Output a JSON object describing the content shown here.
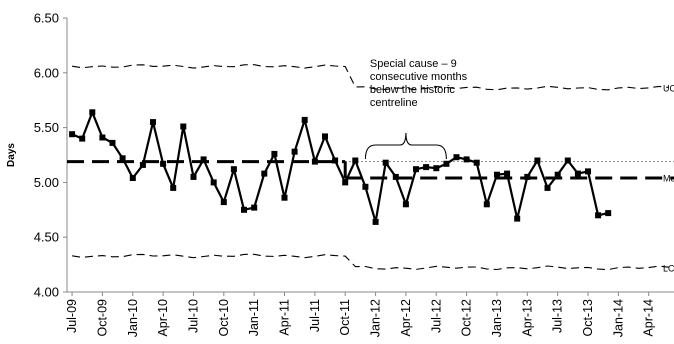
{
  "chart_data": {
    "type": "line",
    "ylabel": "Days",
    "ylim": [
      4.0,
      6.5
    ],
    "yticks": [
      "6.50",
      "6.00",
      "5.50",
      "5.00",
      "4.50",
      "4.00"
    ],
    "ytick_values": [
      6.5,
      6.0,
      5.5,
      5.0,
      4.5,
      4.0
    ],
    "xtick_labels": [
      "Jul-09",
      "Oct-09",
      "Jan-10",
      "Apr-10",
      "Jul-10",
      "Oct-10",
      "Jan-11",
      "Apr-11",
      "Jul-11",
      "Oct-11",
      "Jan-12",
      "Apr-12",
      "Jul-12",
      "Oct-12",
      "Jan-13",
      "Apr-13",
      "Jul-13",
      "Oct-13",
      "Jan-14",
      "Apr-14"
    ],
    "x_start": "Jul-09",
    "x_end": "Jul-14",
    "grid": false,
    "series": {
      "values": [
        5.44,
        5.4,
        5.64,
        5.41,
        5.36,
        5.22,
        5.04,
        5.16,
        5.55,
        5.17,
        4.95,
        5.51,
        5.05,
        5.21,
        5.0,
        4.82,
        5.12,
        4.75,
        4.77,
        5.08,
        5.26,
        4.86,
        5.28,
        5.57,
        5.19,
        5.42,
        5.2,
        5.0,
        5.2,
        4.96,
        4.64,
        5.18,
        5.05,
        4.8,
        5.12,
        5.14,
        5.13,
        5.17,
        5.23,
        5.21,
        5.18,
        4.8,
        5.07,
        5.08,
        4.67,
        5.05,
        5.2,
        4.95,
        5.07,
        5.2,
        5.08,
        5.1,
        4.7,
        4.72
      ]
    },
    "mean": {
      "before": 5.19,
      "after": 5.04,
      "change_after": "Oct-11"
    },
    "ucl": {
      "before": 6.06,
      "after": 5.86
    },
    "lcl": {
      "before": 4.33,
      "after": 4.22
    },
    "historic_centreline": 5.19,
    "annotation": {
      "lines": [
        "Special cause – 9",
        "consecutive months",
        "below the historic",
        "centreline"
      ],
      "brace_from": "Dec-11",
      "brace_to": "Aug-12"
    },
    "limit_labels": {
      "ucl": "UC",
      "mean": "Me",
      "lcl": "LC"
    }
  }
}
